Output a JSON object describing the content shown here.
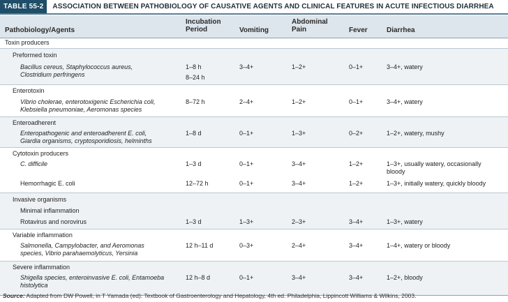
{
  "table": {
    "tag": "TABLE 55-2",
    "title": "ASSOCIATION BETWEEN PATHOBIOLOGY OF CAUSATIVE AGENTS AND CLINICAL FEATURES IN ACUTE INFECTIOUS DIARRHEA",
    "headers": {
      "agents": "Pathobiology/Agents",
      "incubation_1": "Incubation",
      "incubation_2": "Period",
      "vomiting": "Vomiting",
      "pain_1": "Abdominal",
      "pain_2": "Pain",
      "fever": "Fever",
      "diarrhea": "Diarrhea"
    },
    "rows": [
      {
        "level": 0,
        "agent": "Toxin producers"
      },
      {
        "level": 1,
        "agent": "Preformed toxin"
      },
      {
        "level": 2,
        "agent_line1": "Bacillus cereus, Staphylococcus aureus,",
        "agent_line2": "Clostridium perfringens",
        "incubation_line1": "1–8 h",
        "incubation_line2": "8–24 h",
        "vomiting": "3–4+",
        "pain": "1–2+",
        "fever": "0–1+",
        "diarrhea": "3–4+, watery"
      },
      {
        "level": 1,
        "agent": "Enterotoxin"
      },
      {
        "level": 2,
        "agent_line1": "Vibrio cholerae, enterotoxigenic Escherichia coli,",
        "agent_line2": "Klebsiella pneumoniae, Aeromonas species",
        "incubation": "8–72 h",
        "vomiting": "2–4+",
        "pain": "1–2+",
        "fever": "0–1+",
        "diarrhea": "3–4+, watery"
      },
      {
        "level": 1,
        "agent": "Enteroadherent"
      },
      {
        "level": 2,
        "agent_line1": "Enteropathogenic and enteroadherent E. coli,",
        "agent_line2": "Giardia organisms, cryptosporidiosis, helminths",
        "incubation": "1–8 d",
        "vomiting": "0–1+",
        "pain": "1–3+",
        "fever": "0–2+",
        "diarrhea": "1–2+, watery, mushy"
      },
      {
        "level": 1,
        "agent": "Cytotoxin producers"
      },
      {
        "level": 2,
        "agent": "C. difficile",
        "incubation": "1–3 d",
        "vomiting": "0–1+",
        "pain": "3–4+",
        "fever": "1–2+",
        "diarrhea_line1": "1–3+, usually watery, occasionally",
        "diarrhea_line2": "bloody"
      },
      {
        "level": 2,
        "agent": "Hemorrhagic E. coli",
        "incubation": "12–72 h",
        "vomiting": "0–1+",
        "pain": "3–4+",
        "fever": "1–2+",
        "diarrhea": "1–3+, initially watery, quickly bloody"
      },
      {
        "level": 1,
        "agent": "Invasive organisms"
      },
      {
        "level": 2,
        "agent": "Minimal inflammation"
      },
      {
        "level": 2,
        "agent": "Rotavirus and norovirus",
        "incubation": "1–3 d",
        "vomiting": "1–3+",
        "pain": "2–3+",
        "fever": "3–4+",
        "diarrhea": "1–3+, watery"
      },
      {
        "level": 1,
        "agent": "Variable inflammation"
      },
      {
        "level": 2,
        "agent_line1": "Salmonella, Campylobacter, and Aeromonas",
        "agent_line2": "species, Vibrio parahaemolyticus, Yersinia",
        "incubation": "12 h–11 d",
        "vomiting": "0–3+",
        "pain": "2–4+",
        "fever": "3–4+",
        "diarrhea": "1–4+, watery or bloody"
      },
      {
        "level": 1,
        "agent": "Severe inflammation"
      },
      {
        "level": 2,
        "agent_line1": "Shigella species, enteroinvasive E. coli, Entamoeba",
        "agent_line2": "histolytica",
        "incubation": "12 h–8 d",
        "vomiting": "0–1+",
        "pain": "3–4+",
        "fever": "3–4+",
        "diarrhea": "1–2+, bloody"
      }
    ]
  },
  "source": {
    "label": "Source:",
    "text": " Adapted from DW Powell, in T Yamada (ed): Textbook of Gastroenterology and Hepatology, 4th ed. Philadelphia, Lippincott Williams & Wilkins, 2003."
  }
}
